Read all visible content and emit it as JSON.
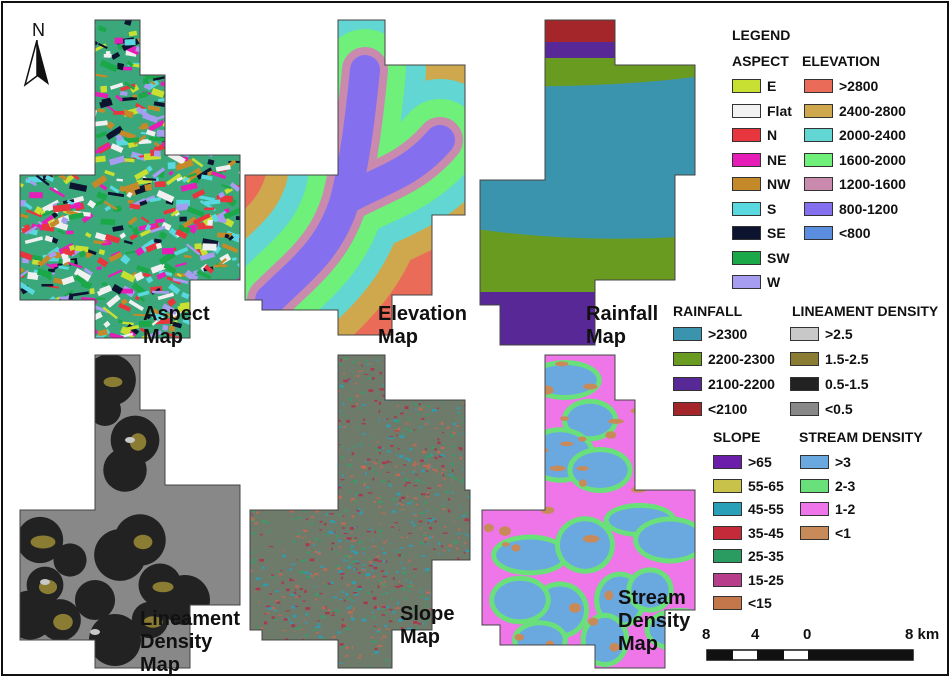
{
  "maps": [
    {
      "id": "aspect",
      "title_line1": "Aspect",
      "title_line2": "Map",
      "palette": [
        "#c8e032",
        "#e8363f",
        "#e61eb8",
        "#c48a2a",
        "#5ad8e0",
        "#0c1430",
        "#1aa848",
        "#a69cf0",
        "#f0f0f0"
      ]
    },
    {
      "id": "elevation",
      "title_line1": "Elevation",
      "title_line2": "Map",
      "palette": [
        "#8470ee",
        "#c98aae",
        "#6ef07a",
        "#62d6d2",
        "#cfa84e",
        "#ea6b58"
      ]
    },
    {
      "id": "rainfall",
      "title_line1": "Rainfall",
      "title_line2": "Map",
      "palette": [
        "#3b94ad",
        "#6a9b21",
        "#572896",
        "#a4262a"
      ]
    },
    {
      "id": "lineament",
      "title_line1": "Lineament",
      "title_line2": "Density",
      "title_line3": "Map",
      "palette": [
        "#888888",
        "#222222",
        "#8a7c32",
        "#c8c8c8"
      ]
    },
    {
      "id": "slope",
      "title_line1": "Slope",
      "title_line2": "Map",
      "palette": [
        "#6e7a6a",
        "#b0304a",
        "#3a9c6a",
        "#c46a52",
        "#2aa0b8"
      ]
    },
    {
      "id": "stream",
      "title_line1": "Stream",
      "title_line2": "Density",
      "title_line3": "Map",
      "palette": [
        "#6aa8e0",
        "#6ae07a",
        "#ee76e8",
        "#c98a5a"
      ]
    }
  ],
  "north_arrow": {
    "label": "N"
  },
  "legend": {
    "title": "LEGEND",
    "aspect": {
      "heading": "ASPECT",
      "items": [
        {
          "label": "E",
          "color": "#c8e032"
        },
        {
          "label": "Flat",
          "color": "#f2f2f2"
        },
        {
          "label": "N",
          "color": "#e8363f"
        },
        {
          "label": "NE",
          "color": "#e61eb8"
        },
        {
          "label": "NW",
          "color": "#c48a2a"
        },
        {
          "label": "S",
          "color": "#5ad8e0"
        },
        {
          "label": "SE",
          "color": "#0c1430"
        },
        {
          "label": "SW",
          "color": "#1aa848"
        },
        {
          "label": "W",
          "color": "#a69cf0"
        }
      ]
    },
    "elevation": {
      "heading": "ELEVATION",
      "items": [
        {
          "label": ">2800",
          "color": "#ea6b58"
        },
        {
          "label": "2400-2800",
          "color": "#cfa84e"
        },
        {
          "label": "2000-2400",
          "color": "#62d6d2"
        },
        {
          "label": "1600-2000",
          "color": "#6ef07a"
        },
        {
          "label": "1200-1600",
          "color": "#c98aae"
        },
        {
          "label": "800-1200",
          "color": "#8470ee"
        },
        {
          "label": "<800",
          "color": "#5b8ede"
        }
      ]
    },
    "rainfall": {
      "heading": "RAINFALL",
      "items": [
        {
          "label": ">2300",
          "color": "#3b94ad"
        },
        {
          "label": "2200-2300",
          "color": "#6a9b21"
        },
        {
          "label": "2100-2200",
          "color": "#572896"
        },
        {
          "label": "<2100",
          "color": "#a4262a"
        }
      ]
    },
    "lineament": {
      "heading": "LINEAMENT DENSITY",
      "items": [
        {
          "label": ">2.5",
          "color": "#c8c8c8"
        },
        {
          "label": "1.5-2.5",
          "color": "#8a7c32"
        },
        {
          "label": "0.5-1.5",
          "color": "#222222"
        },
        {
          "label": "<0.5",
          "color": "#888888"
        }
      ]
    },
    "slope": {
      "heading": "SLOPE",
      "items": [
        {
          "label": ">65",
          "color": "#6a1eaa"
        },
        {
          "label": "55-65",
          "color": "#c8c24a"
        },
        {
          "label": "45-55",
          "color": "#2aa0b8"
        },
        {
          "label": "35-45",
          "color": "#c42a3a"
        },
        {
          "label": "25-35",
          "color": "#2a9c62"
        },
        {
          "label": "15-25",
          "color": "#b63e8a"
        },
        {
          "label": "<15",
          "color": "#c4774a"
        }
      ]
    },
    "stream": {
      "heading": "STREAM DENSITY",
      "items": [
        {
          "label": ">3",
          "color": "#6aa8e0"
        },
        {
          "label": "2-3",
          "color": "#6ae07a"
        },
        {
          "label": "1-2",
          "color": "#ee76e8"
        },
        {
          "label": "<1",
          "color": "#c98a5a"
        }
      ]
    }
  },
  "scale_bar": {
    "ticks": [
      "8",
      "4",
      "0",
      "8 km"
    ]
  }
}
